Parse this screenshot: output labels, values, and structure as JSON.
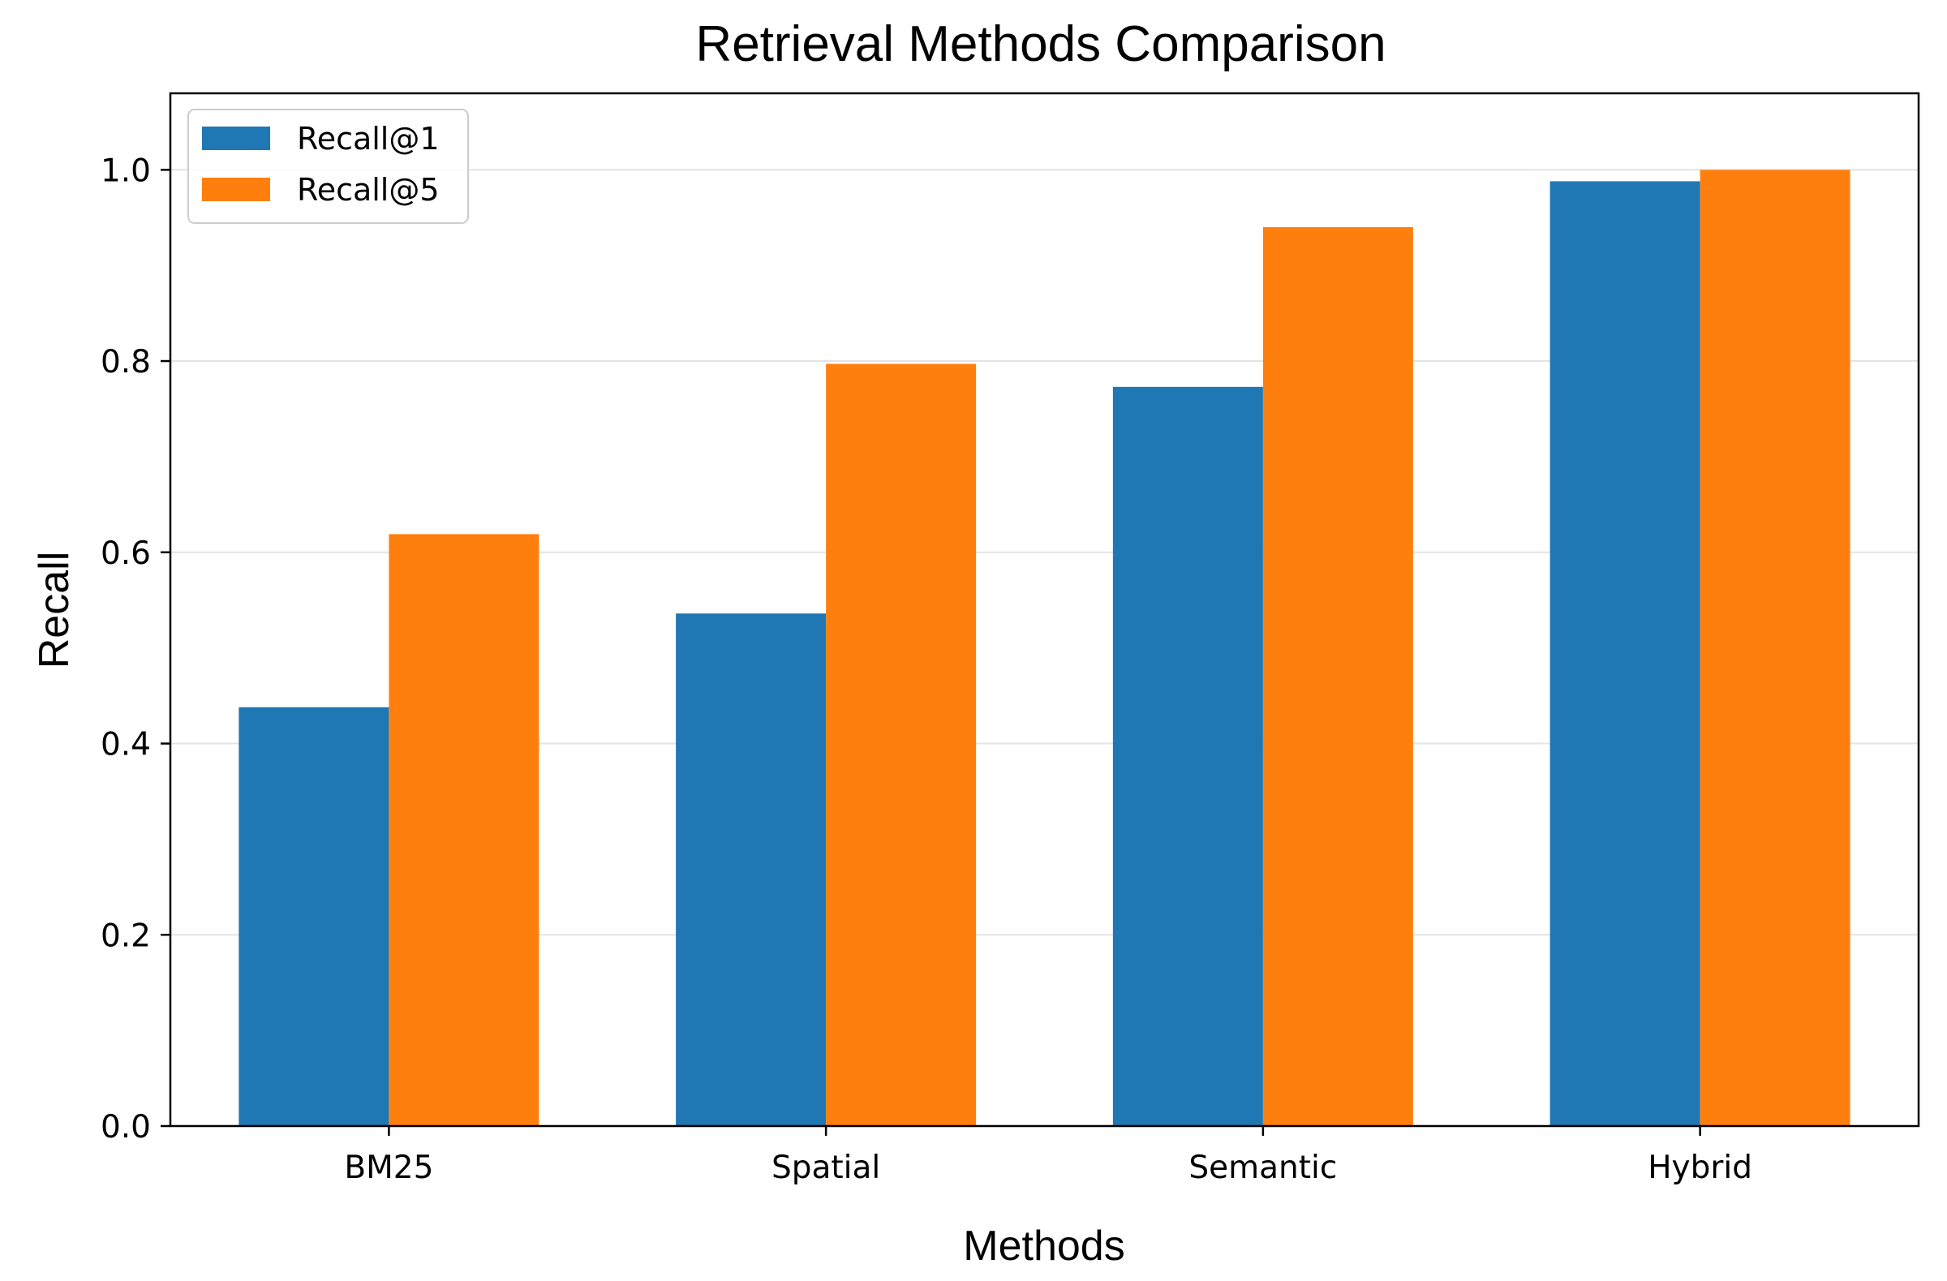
{
  "chart_data": {
    "type": "bar",
    "title": "Retrieval Methods Comparison",
    "xlabel": "Methods",
    "ylabel": "Recall",
    "categories": [
      "BM25",
      "Spatial",
      "Semantic",
      "Hybrid"
    ],
    "series": [
      {
        "name": "Recall@1",
        "color": "#1f77b4",
        "values": [
          0.438,
          0.536,
          0.773,
          0.988
        ]
      },
      {
        "name": "Recall@5",
        "color": "#ff7f0e",
        "values": [
          0.619,
          0.797,
          0.94,
          1.0
        ]
      }
    ],
    "ylim": [
      0,
      1.08
    ],
    "yticks": [
      "0.0",
      "0.2",
      "0.4",
      "0.6",
      "0.8",
      "1.0"
    ],
    "grid": "y",
    "legend": "upper-left"
  }
}
